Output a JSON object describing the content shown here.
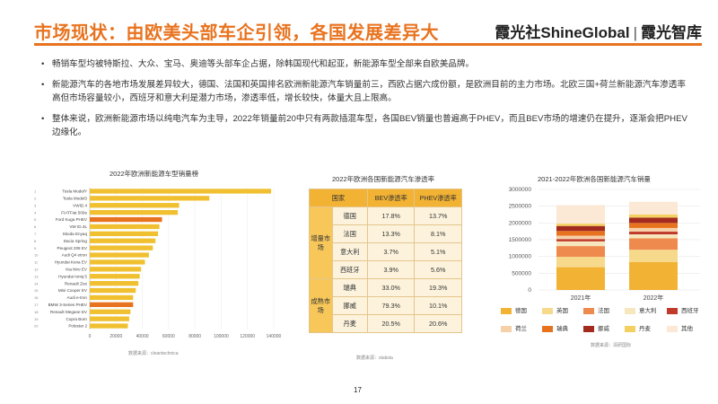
{
  "header": {
    "title": "市场现状：由欧美头部车企引领，各国发展差异大",
    "brand": "霞光社ShineGlobal",
    "brand2": "霞光智库"
  },
  "bullets": [
    "畅销车型均被特斯拉、大众、宝马、奥迪等头部车企占据，除韩国现代和起亚，新能源车型全部来自欧美品牌。",
    "新能源汽车的各地市场发展差异较大，德国、法国和英国排名欧洲新能源汽车销量前三，西欧占据六成份额，是欧洲目前的主力市场。北欧三国+荷兰新能源汽车渗透率高但市场容量较小，西班牙和意大利是潜力市场，渗透率低，增长较快，体量大且上限高。",
    "整体来说，欧洲新能源市场以纯电汽车为主导，2022年销量前20中只有两款插混车型，各国BEV销量也普遍高于PHEV，而且BEV市场的增速仍在提升，逐渐会把PHEV边缘化。"
  ],
  "panel1": {
    "title": "2022年欧洲新能源车型销量榜",
    "source": "数据来源：cleantechnica"
  },
  "panel2": {
    "title": "2022年欧洲各国新能源汽车渗透率",
    "source": "数据来源：statista",
    "headers": [
      "国家",
      "BEV渗透率",
      "PHEV渗透率"
    ],
    "group1": "增量市场",
    "group2": "成熟市场",
    "rows": [
      {
        "country": "德国",
        "bev": "17.8%",
        "phev": "13.7%"
      },
      {
        "country": "法国",
        "bev": "13.3%",
        "phev": "8.1%"
      },
      {
        "country": "意大利",
        "bev": "3.7%",
        "phev": "5.1%"
      },
      {
        "country": "西班牙",
        "bev": "3.9%",
        "phev": "5.6%"
      },
      {
        "country": "瑞典",
        "bev": "33.0%",
        "phev": "19.3%"
      },
      {
        "country": "挪威",
        "bev": "79.3%",
        "phev": "10.1%"
      },
      {
        "country": "丹麦",
        "bev": "20.5%",
        "phev": "20.6%"
      }
    ]
  },
  "panel3": {
    "title": "2021-2022年欧洲各国新能源汽车销量",
    "source": "数据来源：清研国际"
  },
  "page": "17",
  "chart_data": [
    {
      "type": "bar",
      "orientation": "horizontal",
      "title": "2022年欧洲新能源车型销量榜",
      "categories": [
        "Tesla ModelY",
        "Tesla Model3",
        "VWID.4",
        "FIATFiat 500e",
        "Ford Kuga PHEV",
        "VW ID.3L",
        "Skoda Enyaq",
        "Dacia Spring",
        "Peugeot 208 EV",
        "Audi Q4 etron",
        "Hyundai Kona EV",
        "Kia Niro EV",
        "Hyundai Ioniq 5",
        "Renault Zoe",
        "Mini Cooper EV",
        "Audi e-tron",
        "BMW 3-Series PHEV",
        "Renault Megane EV",
        "Cupra Born",
        "Polestar 2"
      ],
      "rank_labels": [
        "1",
        "2",
        "3",
        "4",
        "5",
        "6",
        "7",
        "8",
        "9",
        "10",
        "11",
        "12",
        "13",
        "14",
        "15",
        "16",
        "17",
        "18",
        "19",
        "20"
      ],
      "values": [
        138000,
        91000,
        68000,
        67000,
        55000,
        53000,
        52000,
        50000,
        48000,
        45000,
        42000,
        39000,
        38000,
        37000,
        35000,
        33000,
        33000,
        31000,
        30000,
        29000
      ],
      "highlight_color": "#e8731f",
      "bar_color": "#f0c030",
      "highlighted_rows": [
        "Ford Kuga PHEV",
        "BMW 3-Series PHEV"
      ],
      "xticks": [
        "0",
        "20000",
        "40000",
        "60000",
        "80000",
        "100000",
        "120000",
        "140000"
      ],
      "xlim": [
        0,
        140000
      ]
    },
    {
      "type": "bar",
      "stacked": true,
      "title": "2021-2022年欧洲各国新能源汽车销量",
      "categories": [
        "2021年",
        "2022年"
      ],
      "ylim": [
        0,
        3000000
      ],
      "yticks": [
        "0",
        "500000",
        "1000000",
        "1500000",
        "2000000",
        "2500000",
        "3000000"
      ],
      "series": [
        {
          "name": "德国",
          "color": "#f2b233",
          "values": [
            680000,
            830000
          ]
        },
        {
          "name": "英国",
          "color": "#f7d98c",
          "values": [
            310000,
            370000
          ]
        },
        {
          "name": "法国",
          "color": "#ee8a4e",
          "values": [
            320000,
            340000
          ]
        },
        {
          "name": "意大利",
          "color": "#f7e7be",
          "values": [
            140000,
            120000
          ]
        },
        {
          "name": "西班牙",
          "color": "#c0392b",
          "values": [
            70000,
            80000
          ]
        },
        {
          "name": "荷兰",
          "color": "#f5d0a8",
          "values": [
            100000,
            110000
          ]
        },
        {
          "name": "瑞典",
          "color": "#e8731f",
          "values": [
            140000,
            150000
          ]
        },
        {
          "name": "挪威",
          "color": "#a32a1e",
          "values": [
            150000,
            160000
          ]
        },
        {
          "name": "丹麦",
          "color": "#f4d060",
          "values": [
            70000,
            90000
          ]
        },
        {
          "name": "其他",
          "color": "#fbe8d5",
          "values": [
            550000,
            380000
          ]
        }
      ]
    }
  ]
}
